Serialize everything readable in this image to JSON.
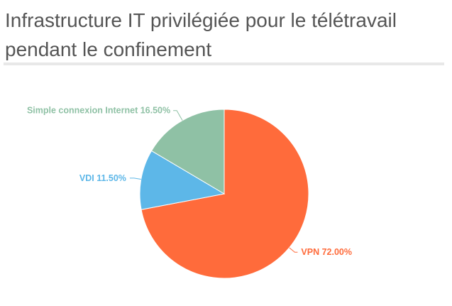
{
  "chart": {
    "title": "Infrastructure IT privilégiée pour le télétravail pendant le confinement"
  },
  "chart_data": {
    "type": "pie",
    "title": "Infrastructure IT privilégiée pour le télétravail pendant le confinement",
    "start_angle_deg": 0,
    "direction": "clockwise",
    "slices": [
      {
        "label": "VPN",
        "value": 72.0,
        "display": "VPN 72.00%",
        "color": "#ff6b3b"
      },
      {
        "label": "VDI",
        "value": 11.5,
        "display": "VDI 11.50%",
        "color": "#5db7e8"
      },
      {
        "label": "Simple connexion Internet",
        "value": 16.5,
        "display": "Simple connexion Internet 16.50%",
        "color": "#8fc1a5"
      }
    ]
  }
}
